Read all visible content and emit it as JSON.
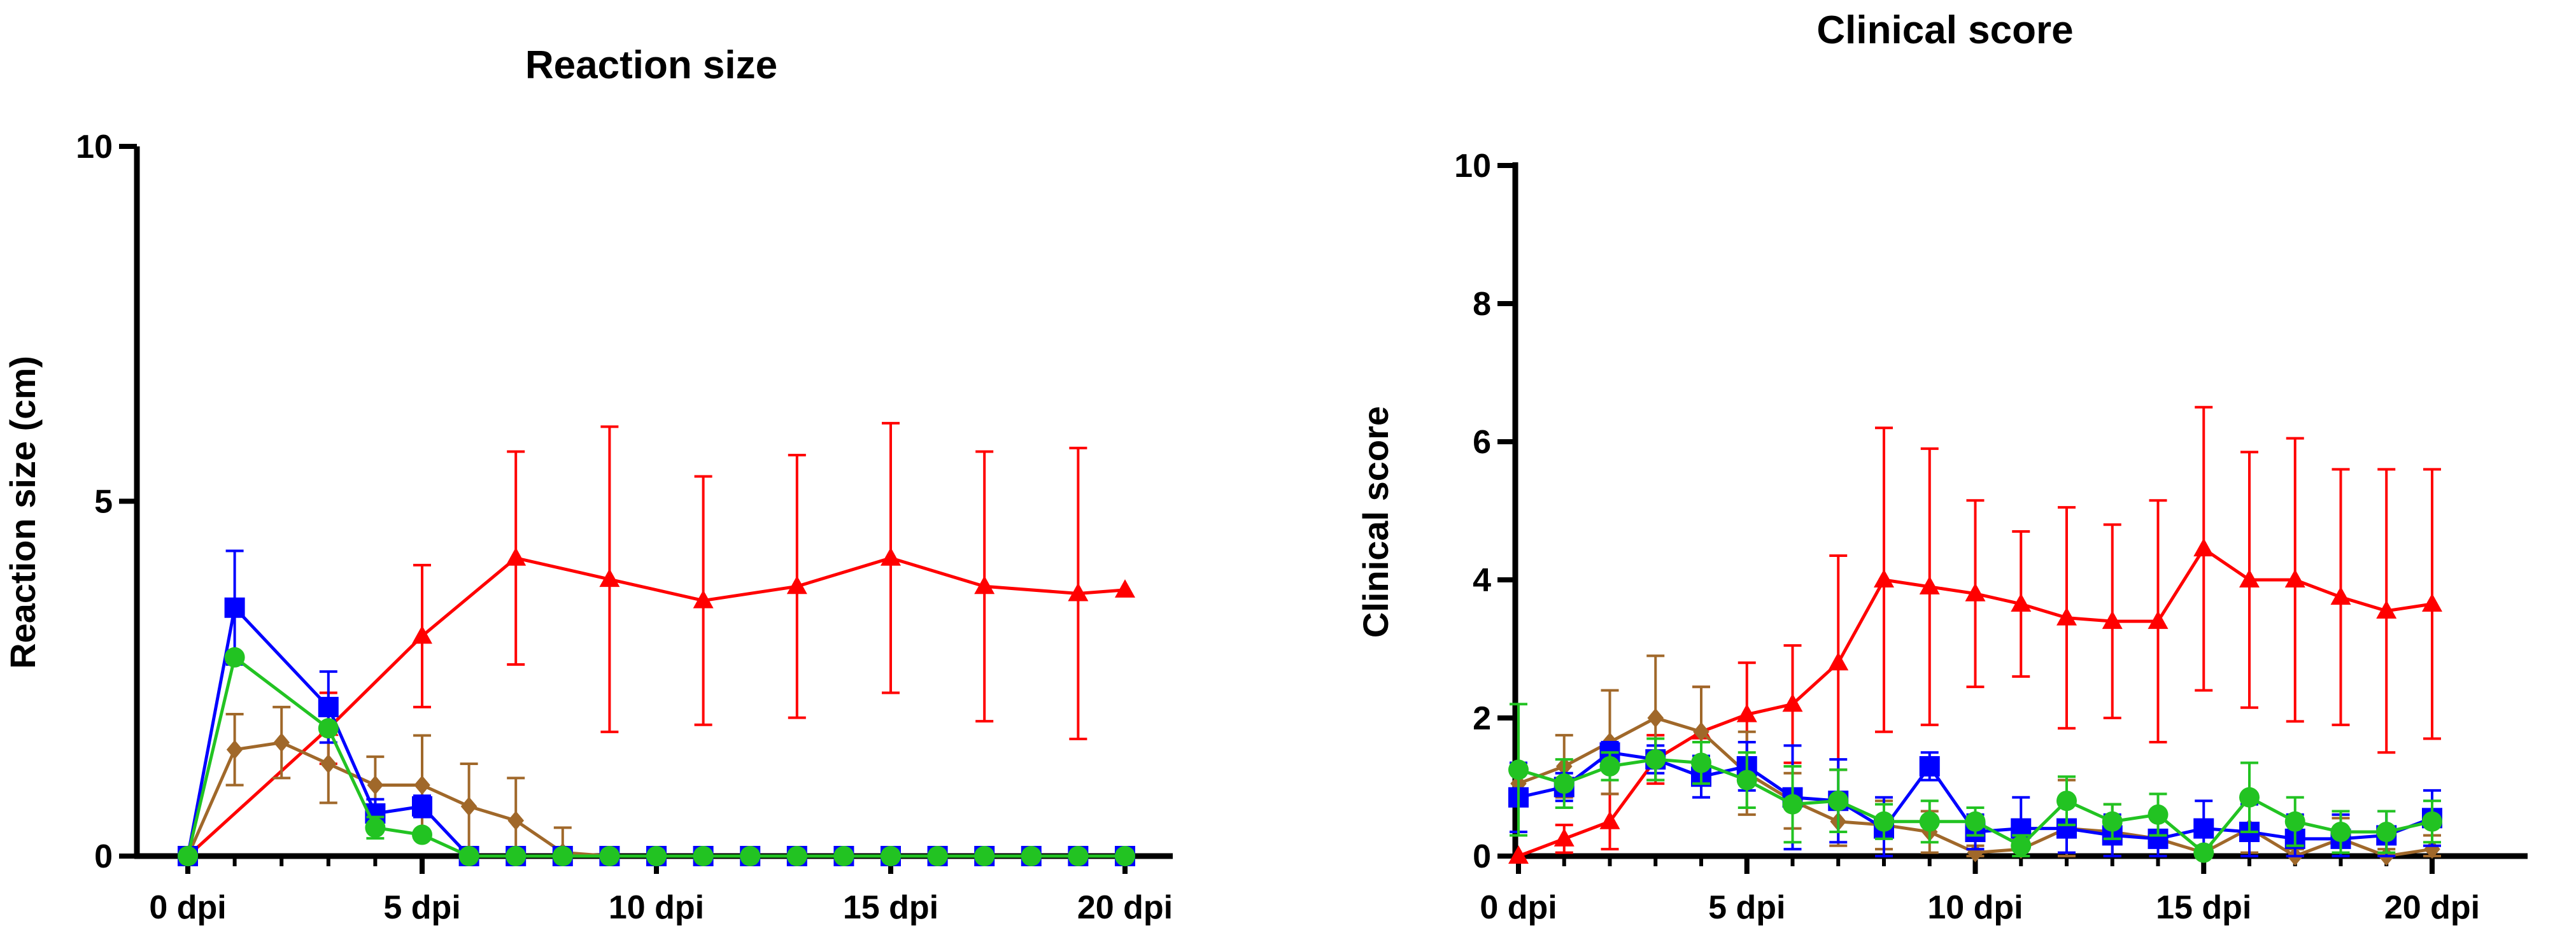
{
  "chart_data": [
    {
      "type": "line",
      "title": "Reaction size",
      "xlabel": "",
      "ylabel": "Reaction size (cm)",
      "xlim": [
        0,
        20
      ],
      "ylim": [
        0,
        10
      ],
      "x_ticks": [
        {
          "value": 0,
          "label": "0 dpi"
        },
        {
          "value": 5,
          "label": "5 dpi"
        },
        {
          "value": 10,
          "label": "10 dpi"
        },
        {
          "value": 15,
          "label": "15 dpi"
        },
        {
          "value": 20,
          "label": "20 dpi"
        }
      ],
      "y_ticks": [
        {
          "value": 0,
          "label": "0"
        },
        {
          "value": 5,
          "label": "5"
        },
        {
          "value": 10,
          "label": "10"
        }
      ],
      "grid": false,
      "series": [
        {
          "name": "red",
          "color": "#ff0000",
          "marker": "triangle",
          "x": [
            0,
            3,
            5,
            7,
            9,
            11,
            13,
            15,
            17,
            19,
            20
          ],
          "values": [
            0,
            1.8,
            3.1,
            4.2,
            3.9,
            3.6,
            3.8,
            4.2,
            3.8,
            3.7,
            3.75
          ],
          "err": [
            0,
            0.5,
            1.0,
            1.5,
            2.15,
            1.75,
            1.85,
            1.9,
            1.9,
            2.05,
            0
          ]
        },
        {
          "name": "brown",
          "color": "#a0682a",
          "marker": "diamond",
          "x": [
            0,
            1,
            2,
            3,
            4,
            5,
            6,
            7,
            8,
            9,
            10,
            11,
            12,
            13,
            14,
            15,
            16,
            17,
            18,
            19,
            20
          ],
          "values": [
            0,
            1.5,
            1.6,
            1.3,
            1.0,
            1.0,
            0.7,
            0.5,
            0.05,
            0,
            0,
            0,
            0,
            0,
            0,
            0,
            0,
            0,
            0,
            0,
            0
          ],
          "err": [
            0,
            0.5,
            0.5,
            0.55,
            0.4,
            0.7,
            0.6,
            0.6,
            0.35,
            0,
            0,
            0,
            0,
            0,
            0,
            0,
            0,
            0,
            0,
            0,
            0
          ]
        },
        {
          "name": "blue",
          "color": "#0000ff",
          "marker": "square",
          "x": [
            0,
            1,
            3,
            4,
            5,
            6,
            7,
            8,
            9,
            10,
            11,
            12,
            13,
            14,
            15,
            16,
            17,
            18,
            19,
            20
          ],
          "values": [
            0,
            3.5,
            2.1,
            0.6,
            0.7,
            0,
            0,
            0,
            0,
            0,
            0,
            0,
            0,
            0,
            0,
            0,
            0,
            0,
            0,
            0
          ],
          "err": [
            0,
            0.8,
            0.5,
            0.2,
            0.15,
            0,
            0,
            0,
            0,
            0,
            0,
            0,
            0,
            0,
            0,
            0,
            0,
            0,
            0,
            0
          ]
        },
        {
          "name": "green",
          "color": "#22c322",
          "marker": "circle",
          "x": [
            0,
            1,
            3,
            4,
            5,
            6,
            7,
            8,
            9,
            10,
            11,
            12,
            13,
            14,
            15,
            16,
            17,
            18,
            19,
            20
          ],
          "values": [
            0,
            2.8,
            1.8,
            0.4,
            0.3,
            0,
            0,
            0,
            0,
            0,
            0,
            0,
            0,
            0,
            0,
            0,
            0,
            0,
            0,
            0
          ],
          "err": [
            0,
            0,
            0,
            0.15,
            0,
            0,
            0,
            0,
            0,
            0,
            0,
            0,
            0,
            0,
            0,
            0,
            0,
            0,
            0,
            0
          ]
        }
      ]
    },
    {
      "type": "line",
      "title": "Clinical score",
      "xlabel": "",
      "ylabel": "Clinical score",
      "xlim": [
        0,
        20
      ],
      "ylim": [
        0,
        10
      ],
      "x_ticks": [
        {
          "value": 0,
          "label": "0 dpi"
        },
        {
          "value": 5,
          "label": "5 dpi"
        },
        {
          "value": 10,
          "label": "10 dpi"
        },
        {
          "value": 15,
          "label": "15 dpi"
        },
        {
          "value": 20,
          "label": "20 dpi"
        }
      ],
      "y_ticks": [
        {
          "value": 0,
          "label": "0"
        },
        {
          "value": 2,
          "label": "2"
        },
        {
          "value": 4,
          "label": "4"
        },
        {
          "value": 6,
          "label": "6"
        },
        {
          "value": 8,
          "label": "8"
        },
        {
          "value": 10,
          "label": "10"
        }
      ],
      "grid": false,
      "series": [
        {
          "name": "red",
          "color": "#ff0000",
          "marker": "triangle",
          "x": [
            0,
            1,
            2,
            3,
            4,
            5,
            6,
            7,
            8,
            9,
            10,
            11,
            12,
            13,
            14,
            15,
            16,
            17,
            18,
            19,
            20
          ],
          "values": [
            0,
            0.25,
            0.5,
            1.4,
            1.8,
            2.05,
            2.2,
            2.8,
            4.0,
            3.9,
            3.8,
            3.65,
            3.45,
            3.4,
            3.4,
            4.45,
            4.0,
            4.0,
            3.75,
            3.55,
            3.65
          ],
          "err": [
            0,
            0.2,
            0.4,
            0.35,
            0.65,
            0.75,
            0.85,
            1.55,
            2.2,
            2.0,
            1.35,
            1.05,
            1.6,
            1.4,
            1.75,
            2.05,
            1.85,
            2.05,
            1.85,
            2.05,
            1.95
          ]
        },
        {
          "name": "brown",
          "color": "#a0682a",
          "marker": "diamond",
          "x": [
            0,
            1,
            2,
            3,
            4,
            5,
            6,
            7,
            8,
            9,
            10,
            11,
            12,
            13,
            14,
            15,
            16,
            17,
            18,
            19,
            20
          ],
          "values": [
            1.05,
            1.3,
            1.65,
            2.0,
            1.8,
            1.2,
            0.8,
            0.5,
            0.45,
            0.35,
            0.05,
            0.1,
            0.4,
            0.35,
            0.25,
            0.05,
            0.4,
            0.0,
            0.25,
            0.0,
            0.1
          ],
          "err": [
            0.3,
            0.45,
            0.75,
            0.9,
            0.65,
            0.6,
            0.4,
            0.35,
            0.35,
            0.3,
            0.1,
            0.15,
            0.7,
            0.4,
            0.3,
            0.1,
            0.35,
            0.1,
            0.3,
            0.1,
            0.2
          ]
        },
        {
          "name": "blue",
          "color": "#0000ff",
          "marker": "square",
          "x": [
            0,
            1,
            2,
            3,
            4,
            5,
            6,
            7,
            8,
            9,
            10,
            11,
            12,
            13,
            14,
            15,
            16,
            17,
            18,
            19,
            20
          ],
          "values": [
            0.85,
            1.0,
            1.5,
            1.4,
            1.15,
            1.3,
            0.85,
            0.8,
            0.4,
            1.3,
            0.35,
            0.4,
            0.4,
            0.3,
            0.25,
            0.4,
            0.35,
            0.25,
            0.25,
            0.3,
            0.55
          ],
          "err": [
            0.5,
            0.2,
            0.15,
            0.2,
            0.3,
            0.35,
            0.75,
            0.6,
            0.45,
            0.2,
            0.25,
            0.45,
            0.35,
            0.3,
            0.3,
            0.4,
            0.4,
            0.35,
            0.35,
            0.35,
            0.4
          ]
        },
        {
          "name": "green",
          "color": "#22c322",
          "marker": "circle",
          "x": [
            0,
            1,
            2,
            3,
            4,
            5,
            6,
            7,
            8,
            9,
            10,
            11,
            12,
            13,
            14,
            15,
            16,
            17,
            18,
            19,
            20
          ],
          "values": [
            1.25,
            1.05,
            1.3,
            1.4,
            1.35,
            1.1,
            0.75,
            0.8,
            0.5,
            0.5,
            0.5,
            0.15,
            0.8,
            0.5,
            0.6,
            0.05,
            0.85,
            0.5,
            0.35,
            0.35,
            0.5
          ],
          "err": [
            0.95,
            0.35,
            0.2,
            0.3,
            0.3,
            0.4,
            0.55,
            0.45,
            0.25,
            0.3,
            0.2,
            0.15,
            0.35,
            0.25,
            0.3,
            0.1,
            0.5,
            0.35,
            0.3,
            0.3,
            0.3
          ]
        }
      ]
    }
  ]
}
